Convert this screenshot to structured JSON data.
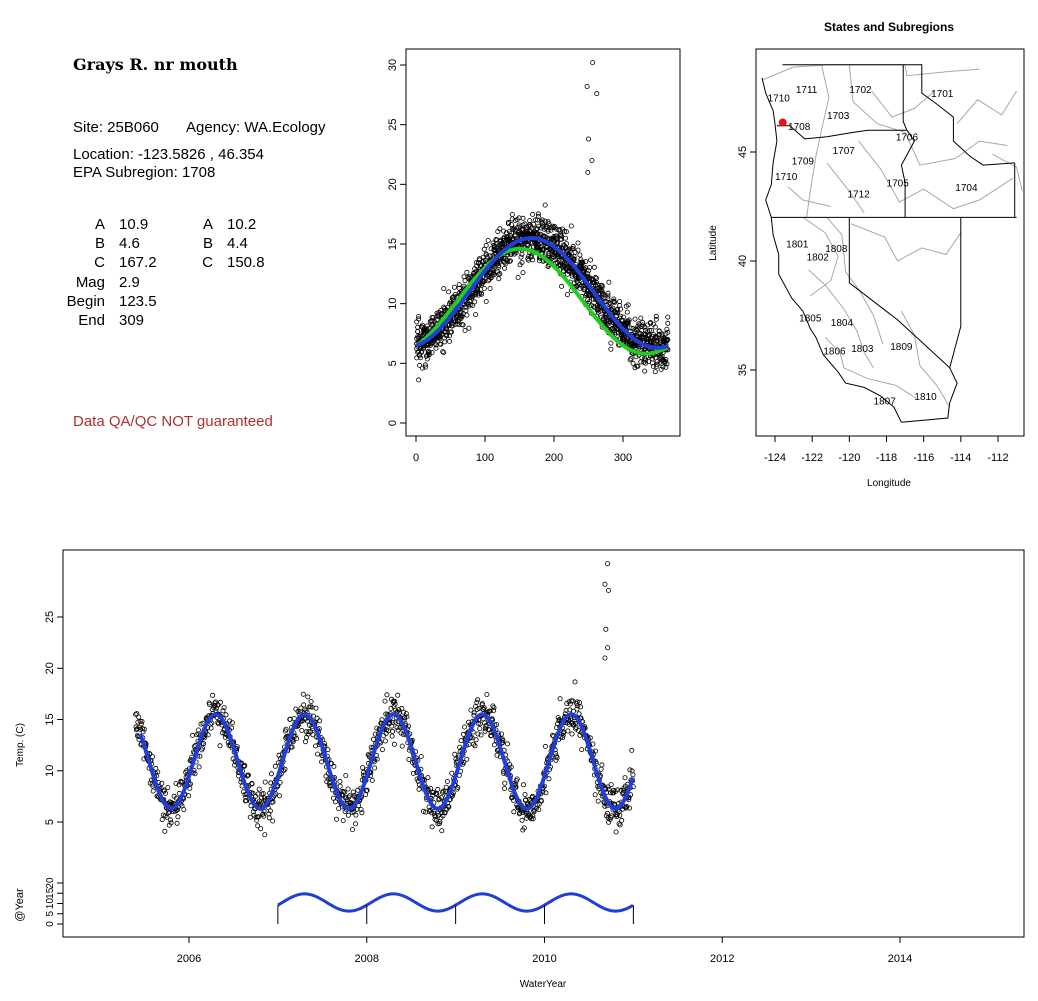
{
  "site": {
    "title": "Grays R. nr mouth",
    "site_label": "Site: 25B060",
    "agency_label": "Agency: WA.Ecology",
    "location_label": "Location: -123.5826 , 46.354",
    "subregion_label": "EPA Subregion: 1708",
    "qa_note": "Data QA/QC NOT guaranteed"
  },
  "params": {
    "col1": [
      {
        "label": "A",
        "value": "10.9"
      },
      {
        "label": "B",
        "value": "4.6"
      },
      {
        "label": "C",
        "value": "167.2"
      },
      {
        "label": "Mag",
        "value": "2.9"
      },
      {
        "label": "Begin",
        "value": "123.5"
      },
      {
        "label": "End",
        "value": "309"
      }
    ],
    "col2": [
      {
        "label": "A",
        "value": "10.2"
      },
      {
        "label": "B",
        "value": "4.4"
      },
      {
        "label": "C",
        "value": "150.8"
      }
    ]
  },
  "colors": {
    "fit_blue": "#1f3fd8",
    "fit_green": "#22cc22",
    "site_marker": "#ee1111",
    "qa_text": "#b03030"
  },
  "chart_data": [
    {
      "type": "scatter",
      "title": "",
      "xlabel": "",
      "ylabel": "",
      "xlim": [
        0,
        365
      ],
      "ylim": [
        0,
        30
      ],
      "x_ticks": [
        0,
        100,
        200,
        300
      ],
      "y_ticks": [
        0,
        5,
        10,
        15,
        20,
        25,
        30
      ],
      "outliers": [
        [
          248,
          28.2
        ],
        [
          256,
          30.2
        ],
        [
          262,
          27.6
        ],
        [
          250,
          23.8
        ],
        [
          255,
          22.0
        ],
        [
          249,
          21.0
        ]
      ],
      "series": [
        {
          "A": 10.9,
          "B": 4.6,
          "C": 167.2,
          "color": "blue"
        },
        {
          "A": 10.2,
          "B": 4.4,
          "C": 150.8,
          "color": "green"
        }
      ]
    },
    {
      "type": "map",
      "title": "States and Subregions",
      "xlabel": "Longitude",
      "ylabel": "Latitude",
      "xlim": [
        -125.5,
        -110.5
      ],
      "ylim": [
        32.2,
        49.2
      ],
      "x_ticks": [
        -124,
        -122,
        -120,
        -118,
        -116,
        -114,
        -112
      ],
      "y_ticks": [
        35,
        40,
        45
      ],
      "site": {
        "lon": -123.5826,
        "lat": 46.354
      },
      "subregions": [
        {
          "label": "1711",
          "lon": -122.3,
          "lat": 47.9
        },
        {
          "label": "1702",
          "lon": -119.4,
          "lat": 47.9
        },
        {
          "label": "1701",
          "lon": -115.0,
          "lat": 47.7
        },
        {
          "label": "1710",
          "lon": -123.8,
          "lat": 47.5
        },
        {
          "label": "1703",
          "lon": -120.6,
          "lat": 46.7
        },
        {
          "label": "1708",
          "lon": -122.7,
          "lat": 46.2
        },
        {
          "label": "1706",
          "lon": -116.9,
          "lat": 45.7
        },
        {
          "label": "1707",
          "lon": -120.3,
          "lat": 45.1
        },
        {
          "label": "1709",
          "lon": -122.5,
          "lat": 44.6
        },
        {
          "label": "1710",
          "lon": -123.4,
          "lat": 43.9
        },
        {
          "label": "1705",
          "lon": -117.4,
          "lat": 43.6
        },
        {
          "label": "1704",
          "lon": -113.7,
          "lat": 43.4
        },
        {
          "label": "1712",
          "lon": -119.5,
          "lat": 43.1
        },
        {
          "label": "1801",
          "lon": -122.8,
          "lat": 40.8
        },
        {
          "label": "1808",
          "lon": -120.7,
          "lat": 40.6
        },
        {
          "label": "1802",
          "lon": -121.7,
          "lat": 40.2
        },
        {
          "label": "1805",
          "lon": -122.1,
          "lat": 37.4
        },
        {
          "label": "1804",
          "lon": -120.4,
          "lat": 37.2
        },
        {
          "label": "1806",
          "lon": -120.8,
          "lat": 35.9
        },
        {
          "label": "1803",
          "lon": -119.3,
          "lat": 36.0
        },
        {
          "label": "1809",
          "lon": -117.2,
          "lat": 36.1
        },
        {
          "label": "1810",
          "lon": -115.9,
          "lat": 33.8
        },
        {
          "label": "1807",
          "lon": -118.1,
          "lat": 33.6
        }
      ]
    },
    {
      "type": "scatter",
      "title": "",
      "xlabel": "WaterYear",
      "ylabel": "Temp. (C)",
      "ylabel2": "@Year",
      "xlim": [
        2004.6,
        2015.4
      ],
      "ylim": [
        3,
        30
      ],
      "ylim2": [
        -3,
        30
      ],
      "x_ticks": [
        2006,
        2008,
        2010,
        2012,
        2014
      ],
      "y_ticks": [
        5,
        10,
        15,
        20,
        25
      ],
      "y_ticks2": [
        0,
        5,
        10,
        15,
        20
      ],
      "data_start": 2005.4,
      "data_end": 2011.0,
      "fit_start": 2005.45,
      "outliers": [
        [
          2010.68,
          28.2
        ],
        [
          2010.71,
          30.2
        ],
        [
          2010.72,
          27.6
        ],
        [
          2010.69,
          23.8
        ],
        [
          2010.71,
          22.0
        ],
        [
          2010.68,
          21.0
        ]
      ],
      "year_segments": [
        {
          "start": 2007.0,
          "end": 2008.0
        },
        {
          "start": 2008.0,
          "end": 2009.0
        },
        {
          "start": 2009.0,
          "end": 2010.0
        },
        {
          "start": 2010.0,
          "end": 2011.0
        }
      ]
    }
  ]
}
